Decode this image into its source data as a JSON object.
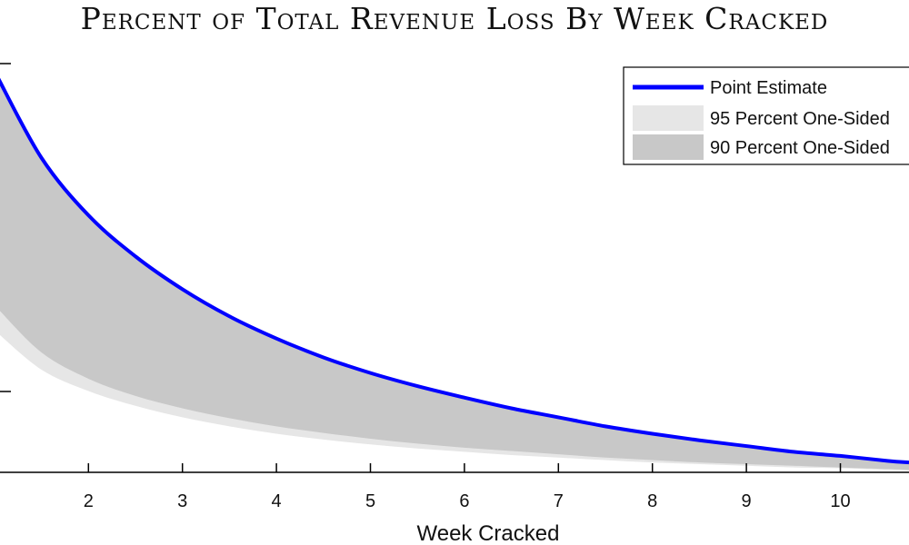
{
  "chart_data": {
    "type": "area",
    "title": "Percent of Total Revenue Loss By Week Cracked",
    "xlabel": "Week Cracked",
    "ylabel": "",
    "x_ticks": [
      2,
      3,
      4,
      5,
      6,
      7,
      8,
      9,
      10
    ],
    "xlim": [
      1.03,
      10.73
    ],
    "ylim": [
      0,
      0.5
    ],
    "grid": false,
    "legend_position": "top-right",
    "x": [
      1.03,
      1.5,
      2,
      2.5,
      3,
      3.5,
      4,
      4.5,
      5,
      5.5,
      6,
      6.5,
      7,
      7.5,
      8,
      8.5,
      9,
      9.5,
      10,
      10.5,
      10.73
    ],
    "series": [
      {
        "name": "Point Estimate",
        "kind": "line",
        "color": "#0000ff",
        "values": [
          0.482,
          0.383,
          0.313,
          0.263,
          0.223,
          0.19,
          0.163,
          0.14,
          0.121,
          0.105,
          0.091,
          0.078,
          0.067,
          0.056,
          0.047,
          0.039,
          0.032,
          0.025,
          0.02,
          0.014,
          0.012
        ]
      },
      {
        "name": "95 Percent One-Sided",
        "kind": "band",
        "color": "#e6e6e6",
        "upper": [
          0.482,
          0.383,
          0.313,
          0.263,
          0.223,
          0.19,
          0.163,
          0.14,
          0.121,
          0.105,
          0.091,
          0.078,
          0.067,
          0.056,
          0.047,
          0.039,
          0.032,
          0.025,
          0.02,
          0.014,
          0.012
        ],
        "lower": [
          0.17,
          0.125,
          0.099,
          0.081,
          0.067,
          0.056,
          0.047,
          0.04,
          0.034,
          0.029,
          0.025,
          0.021,
          0.018,
          0.015,
          0.012,
          0.01,
          0.008,
          0.006,
          0.005,
          0.003,
          0.002
        ]
      },
      {
        "name": "90 Percent One-Sided",
        "kind": "band",
        "color": "#c8c8c8",
        "upper": [
          0.482,
          0.383,
          0.313,
          0.263,
          0.223,
          0.19,
          0.163,
          0.14,
          0.121,
          0.105,
          0.091,
          0.078,
          0.067,
          0.056,
          0.047,
          0.039,
          0.032,
          0.025,
          0.02,
          0.014,
          0.012
        ],
        "lower": [
          0.2,
          0.146,
          0.114,
          0.093,
          0.078,
          0.066,
          0.056,
          0.048,
          0.041,
          0.035,
          0.03,
          0.026,
          0.022,
          0.018,
          0.015,
          0.012,
          0.01,
          0.008,
          0.006,
          0.004,
          0.003
        ]
      }
    ]
  }
}
